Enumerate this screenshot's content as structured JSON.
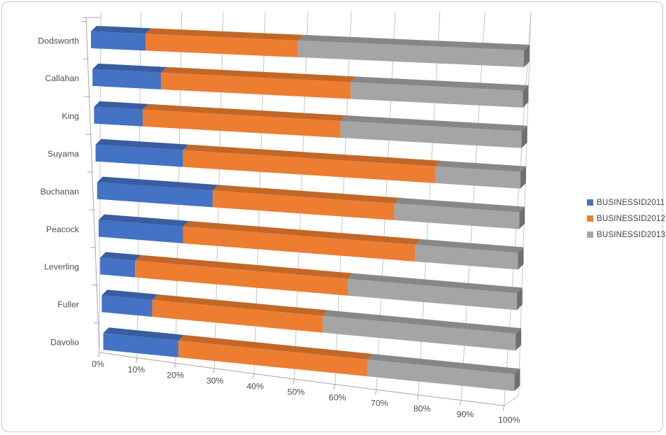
{
  "chart_data": {
    "type": "bar",
    "variant": "3d-horizontal-100pct-stacked",
    "title": "",
    "categories": [
      "Dodsworth",
      "Callahan",
      "King",
      "Suyama",
      "Buchanan",
      "Peacock",
      "Leverling",
      "Fuller",
      "Davolio"
    ],
    "series": [
      {
        "name": "BUSINESSID2011",
        "color": "#4472C4",
        "values": [
          12.6,
          15.9,
          11.4,
          20.6,
          27.4,
          20.1,
          8.4,
          12.2,
          18.3
        ]
      },
      {
        "name": "BUSINESSID2012",
        "color": "#ED7D31",
        "values": [
          35.2,
          44.1,
          46.2,
          59.4,
          43.0,
          55.4,
          51.0,
          41.2,
          45.9
        ]
      },
      {
        "name": "BUSINESSID2013",
        "color": "#A5A5A5",
        "values": [
          52.2,
          40.0,
          42.4,
          20.0,
          29.6,
          24.5,
          40.6,
          46.6,
          35.8
        ]
      }
    ],
    "value_axis_ticks": [
      "0%",
      "10%",
      "20%",
      "30%",
      "40%",
      "50%",
      "60%",
      "70%",
      "80%",
      "90%",
      "100%"
    ],
    "value_axis_range": [
      0,
      100
    ],
    "grid": true,
    "legend_position": "right"
  },
  "styles": {
    "gridline": "#c6c6c6",
    "axis_line": "#a6a6a6",
    "label_text": "#4d4d4d",
    "frame_border": "#c9c9c9",
    "background": "#ffffff"
  }
}
